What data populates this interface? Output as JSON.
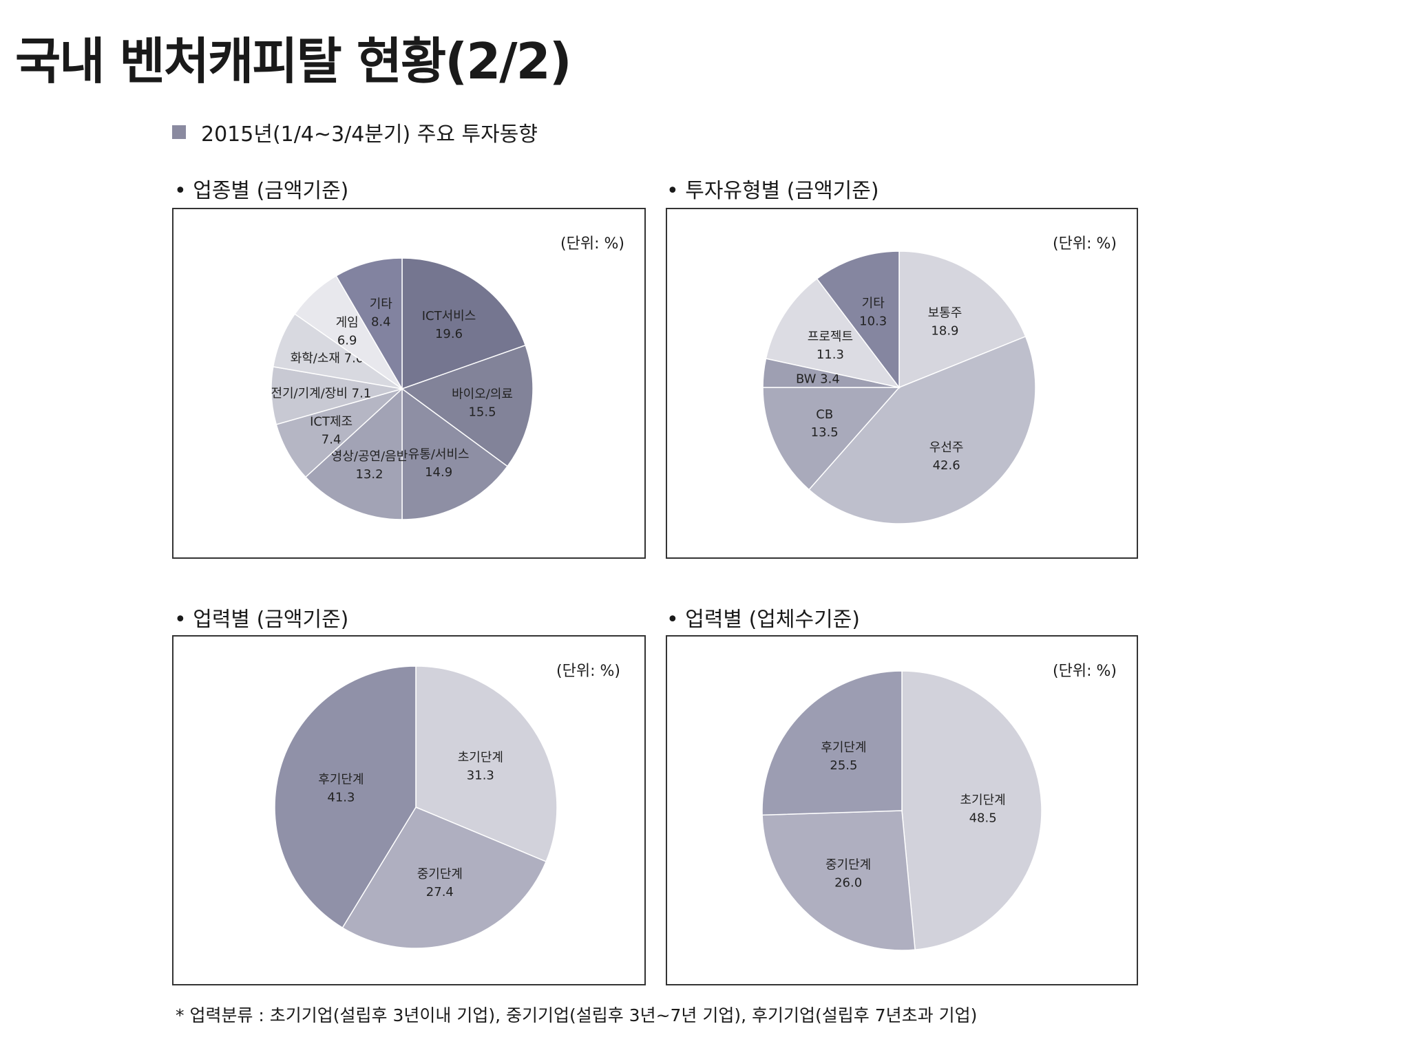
{
  "page": {
    "title": "국내 벤처캐피탈 현황(2/2)",
    "section_heading": "2015년(1/4~3/4분기) 주요 투자동향",
    "footnote": "* 업력분류 : 초기기업(설립후 3년이내 기업), 중기기업(설립후 3년~7년 기업), 후기기업(설립후 7년초과 기업)"
  },
  "chart_data": [
    {
      "type": "pie",
      "title": "• 업종별 (금액기준)",
      "unit_label": "(단위: %)",
      "slices": [
        {
          "label": "ICT서비스",
          "value": 19.6,
          "value_text": "19.6",
          "color": "#757690"
        },
        {
          "label": "바이오/의료",
          "value": 15.5,
          "value_text": "15.5",
          "color": "#828399"
        },
        {
          "label": "유통/서비스",
          "value": 14.9,
          "value_text": "14.9",
          "color": "#8e8fa4"
        },
        {
          "label": "영상/공연/음반",
          "value": 13.2,
          "value_text": "13.2",
          "color": "#a2a3b5"
        },
        {
          "label": "ICT제조",
          "value": 7.4,
          "value_text": "7.4",
          "color": "#b5b6c4"
        },
        {
          "label": "전기/기계/장비",
          "value": 7.1,
          "value_text": "7.1",
          "color": "#c8c9d3"
        },
        {
          "label": "화학/소재",
          "value": 7.0,
          "value_text": "7.0",
          "color": "#d8d9e0"
        },
        {
          "label": "게임",
          "value": 6.9,
          "value_text": "6.9",
          "color": "#e8e8ed"
        },
        {
          "label": "기타",
          "value": 8.4,
          "value_text": "8.4",
          "color": "#8283a0"
        }
      ]
    },
    {
      "type": "pie",
      "title": "• 투자유형별 (금액기준)",
      "unit_label": "(단위: %)",
      "slices": [
        {
          "label": "보통주",
          "value": 18.9,
          "value_text": "18.9",
          "color": "#d6d6de"
        },
        {
          "label": "우선주",
          "value": 42.6,
          "value_text": "42.6",
          "color": "#bebfcc"
        },
        {
          "label": "CB",
          "value": 13.5,
          "value_text": "13.5",
          "color": "#a9aabb"
        },
        {
          "label": "BW",
          "value": 3.4,
          "value_text": "3.4",
          "color": "#9e9fb2"
        },
        {
          "label": "프로젝트",
          "value": 11.3,
          "value_text": "11.3",
          "color": "#dcdce3"
        },
        {
          "label": "기타",
          "value": 10.3,
          "value_text": "10.3",
          "color": "#8586a0"
        }
      ]
    },
    {
      "type": "pie",
      "title": "• 업력별 (금액기준)",
      "unit_label": "(단위: %)",
      "slices": [
        {
          "label": "초기단계",
          "value": 31.3,
          "value_text": "31.3",
          "color": "#d2d2db"
        },
        {
          "label": "중기단계",
          "value": 27.4,
          "value_text": "27.4",
          "color": "#afafc0"
        },
        {
          "label": "후기단계",
          "value": 41.3,
          "value_text": "41.3",
          "color": "#9091a8"
        }
      ]
    },
    {
      "type": "pie",
      "title": "• 업력별 (업체수기준)",
      "unit_label": "(단위: %)",
      "slices": [
        {
          "label": "초기단계",
          "value": 48.5,
          "value_text": "48.5",
          "color": "#d2d2db"
        },
        {
          "label": "중기단계",
          "value": 26.0,
          "value_text": "26.0",
          "color": "#afafc0"
        },
        {
          "label": "후기단계",
          "value": 25.5,
          "value_text": "25.5",
          "color": "#9c9db2"
        }
      ]
    }
  ]
}
